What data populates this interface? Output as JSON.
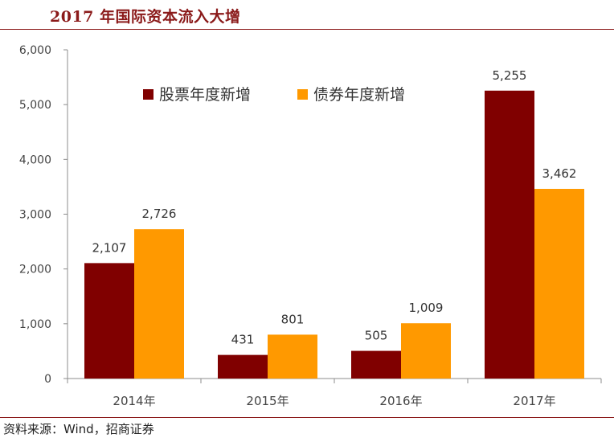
{
  "title": "2017 年国际资本流入大增",
  "source": "资料来源：Wind，招商证券",
  "colors": {
    "accent": "#8b1a1a",
    "stock": "#800000",
    "bond": "#ff9900"
  },
  "chart_data": {
    "type": "bar",
    "categories": [
      "2014年",
      "2015年",
      "2016年",
      "2017年"
    ],
    "series": [
      {
        "name": "股票年度新增",
        "values": [
          2107,
          431,
          505,
          5255
        ],
        "labels": [
          "2,107",
          "431",
          "505",
          "5,255"
        ]
      },
      {
        "name": "债券年度新增",
        "values": [
          2726,
          801,
          1009,
          3462
        ],
        "labels": [
          "2,726",
          "801",
          "1,009",
          "3,462"
        ]
      }
    ],
    "yticks": [
      "0",
      "1,000",
      "2,000",
      "3,000",
      "4,000",
      "5,000",
      "6,000"
    ],
    "ylim": [
      0,
      6000
    ],
    "grid": false,
    "legend_position": "top"
  }
}
